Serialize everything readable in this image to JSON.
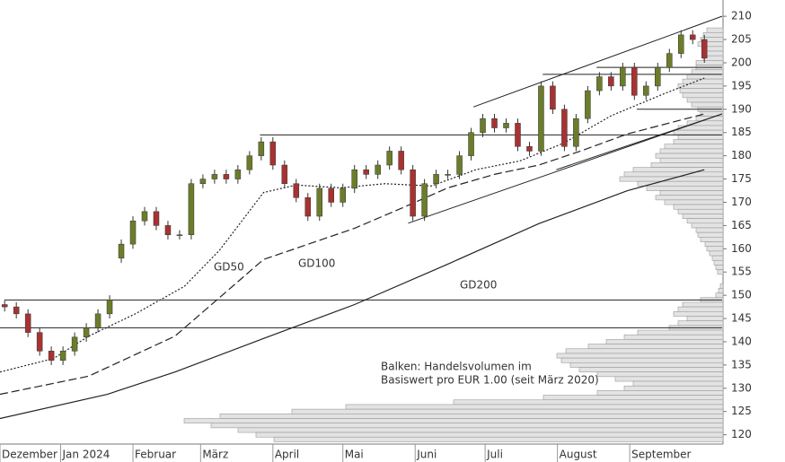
{
  "chart_data": {
    "type": "candlestick",
    "x": [
      7,
      12,
      17,
      22,
      27,
      32,
      37,
      42,
      47,
      52,
      57,
      62,
      67,
      72,
      77,
      82,
      87,
      92,
      97,
      102,
      107,
      112,
      117,
      122,
      127,
      132,
      137,
      142,
      147,
      152,
      157,
      162,
      167,
      172,
      177,
      182,
      187,
      192,
      197,
      202,
      207,
      212,
      217,
      222,
      227,
      232,
      237,
      242,
      247,
      252,
      257,
      262,
      267,
      272,
      277,
      282,
      287,
      292,
      297,
      302,
      307
    ],
    "open": [
      148,
      147.5,
      146,
      142,
      138,
      136,
      138,
      141,
      143,
      146,
      158,
      161,
      166,
      168,
      165,
      163,
      163,
      174,
      175,
      176,
      175,
      177,
      180,
      183,
      178,
      174,
      171,
      167,
      173,
      170,
      173,
      177,
      176,
      178,
      181,
      177,
      167,
      174,
      176,
      176,
      180,
      185,
      188,
      186,
      187,
      182,
      181,
      195,
      190,
      182,
      188,
      194,
      197,
      195,
      199,
      193,
      195,
      199,
      202,
      206,
      205
    ],
    "high": [
      149,
      148.5,
      147,
      143,
      139,
      139,
      142,
      144,
      147,
      150,
      162,
      167,
      169,
      169,
      166,
      164,
      175,
      176,
      177,
      177,
      178,
      181,
      184,
      184,
      179,
      175,
      172,
      174,
      174,
      174,
      178,
      178,
      179,
      182,
      182,
      178,
      175,
      177,
      177,
      181,
      186,
      189,
      189,
      188,
      188,
      183,
      196,
      196,
      191,
      189,
      195,
      198,
      198,
      200,
      200,
      196,
      200,
      203,
      207,
      207,
      206
    ],
    "low": [
      146.5,
      145,
      141,
      137,
      135,
      135,
      137,
      140,
      142,
      145,
      157,
      160,
      165,
      164,
      162,
      162,
      162,
      173,
      174,
      174,
      174,
      176,
      179,
      177,
      173,
      170,
      166,
      166,
      169,
      169,
      172,
      175,
      175,
      177,
      176,
      166,
      166,
      173,
      175,
      175,
      179,
      184,
      185,
      185,
      181,
      180,
      180,
      189,
      181,
      181,
      187,
      193,
      194,
      194,
      192,
      192,
      194,
      198,
      201,
      204,
      200
    ],
    "close": [
      147.5,
      146,
      142,
      138,
      136,
      138,
      141,
      143,
      146,
      149,
      161,
      166,
      168,
      165,
      163,
      163,
      174,
      175,
      176,
      175,
      177,
      180,
      183,
      178,
      174,
      171,
      167,
      173,
      170,
      173,
      177,
      176,
      178,
      181,
      177,
      167,
      174,
      176,
      176,
      180,
      185,
      188,
      186,
      187,
      182,
      181,
      195,
      190,
      182,
      188,
      194,
      197,
      195,
      199,
      193,
      195,
      199,
      202,
      206,
      205,
      201
    ],
    "up_color": "#6b7d2a",
    "down_color": "#a83232",
    "series": [
      {
        "name": "GD50",
        "style": "dotted",
        "x": [
          5,
          28,
          43,
          63,
          84,
          99,
          118,
          132,
          151,
          170,
          190,
          209,
          228,
          247,
          267,
          290,
          307
        ],
        "values": [
          133.5,
          136.4,
          141.2,
          146,
          151.9,
          159.6,
          172.1,
          173.7,
          173.1,
          174,
          173.5,
          177,
          178.9,
          182.8,
          188.6,
          193.4,
          196.7
        ]
      },
      {
        "name": "GD100",
        "style": "dashed",
        "x": [
          5,
          43,
          80,
          118,
          157,
          178,
          197,
          217,
          236,
          255,
          274,
          307
        ],
        "values": [
          128.7,
          132.6,
          141.2,
          157.7,
          164.4,
          168.9,
          173.1,
          176,
          178,
          181.2,
          184.7,
          189
        ]
      },
      {
        "name": "GD200",
        "style": "solid",
        "x": [
          5,
          51,
          80,
          118,
          157,
          197,
          236,
          274,
          307
        ],
        "values": [
          123.5,
          128.7,
          133.5,
          140.7,
          148,
          156.7,
          165.4,
          172.5,
          177
        ]
      }
    ],
    "lines": [
      {
        "x": [
          7,
          314.6
        ],
        "y": [
          149,
          149
        ]
      },
      {
        "x": [
          5,
          314.6
        ],
        "y": [
          143,
          143
        ]
      },
      {
        "x": [
          116.5,
          314.6
        ],
        "y": [
          184.5,
          184.5
        ]
      },
      {
        "x": [
          278,
          314.6
        ],
        "y": [
          190,
          190
        ]
      },
      {
        "x": [
          237.7,
          314.6
        ],
        "y": [
          197.5,
          197.5
        ]
      },
      {
        "x": [
          260.8,
          314.6
        ],
        "y": [
          199,
          199
        ]
      },
      {
        "x": [
          208,
          314.6
        ],
        "y": [
          190.5,
          210
        ]
      },
      {
        "x": [
          180,
          314.6
        ],
        "y": [
          165.5,
          189
        ]
      },
      {
        "x": [
          243.5,
          314.6
        ],
        "y": [
          177,
          189
        ]
      }
    ],
    "volume_profile": {
      "levels": [
        207,
        206,
        205,
        204,
        203,
        202,
        201,
        200,
        199,
        198,
        197,
        196,
        195,
        194,
        193,
        192,
        191,
        190,
        189,
        188,
        187,
        186,
        185,
        184,
        183,
        182,
        181,
        180,
        179,
        178,
        177,
        176,
        175,
        174,
        173,
        172,
        171,
        170,
        169,
        168,
        167,
        166,
        165,
        164,
        163,
        162,
        161,
        160,
        159,
        158,
        157,
        156,
        155,
        154,
        153,
        152,
        151,
        150,
        149,
        148,
        147,
        146,
        145,
        144,
        143,
        142,
        141,
        140,
        139,
        138,
        137,
        136,
        135,
        134,
        133,
        132,
        131,
        130,
        129,
        128,
        127,
        126,
        125,
        124,
        123,
        122,
        121,
        120,
        119
      ],
      "values": [
        18,
        22,
        25,
        28,
        20,
        18,
        22,
        30,
        30,
        35,
        40,
        45,
        50,
        48,
        45,
        40,
        35,
        28,
        25,
        30,
        40,
        50,
        55,
        50,
        55,
        65,
        70,
        75,
        70,
        80,
        100,
        110,
        115,
        95,
        85,
        70,
        75,
        65,
        55,
        50,
        45,
        40,
        35,
        30,
        28,
        25,
        20,
        18,
        15,
        12,
        10,
        8,
        6,
        0,
        0,
        3,
        5,
        8,
        25,
        45,
        50,
        55,
        40,
        50,
        60,
        95,
        110,
        130,
        150,
        175,
        185,
        180,
        170,
        160,
        140,
        120,
        100,
        110,
        140,
        200,
        300,
        420,
        480,
        560,
        600,
        570,
        540,
        520,
        500
      ],
      "lim": [
        0,
        805
      ]
    },
    "note": [
      "Balken: Handelsvolumen im",
      "Basiswert pro EUR 1.00 (seit März 2020)"
    ],
    "xlim": [
      5,
      315
    ],
    "xticks": [
      {
        "value": 5,
        "label": "Dezember"
      },
      {
        "value": 31,
        "label": "Jan 2024"
      },
      {
        "value": 62,
        "label": "Februar"
      },
      {
        "value": 91,
        "label": "März"
      },
      {
        "value": 122,
        "label": "April"
      },
      {
        "value": 152,
        "label": "Mai"
      },
      {
        "value": 183,
        "label": "Juni"
      },
      {
        "value": 213,
        "label": "Juli"
      },
      {
        "value": 244,
        "label": "August"
      },
      {
        "value": 275,
        "label": "September"
      }
    ],
    "ylim": [
      118,
      213.5
    ],
    "yticks": [
      120,
      125,
      130,
      135,
      140,
      145,
      150,
      155,
      160,
      165,
      170,
      175,
      180,
      185,
      190,
      195,
      200,
      205,
      210
    ]
  }
}
